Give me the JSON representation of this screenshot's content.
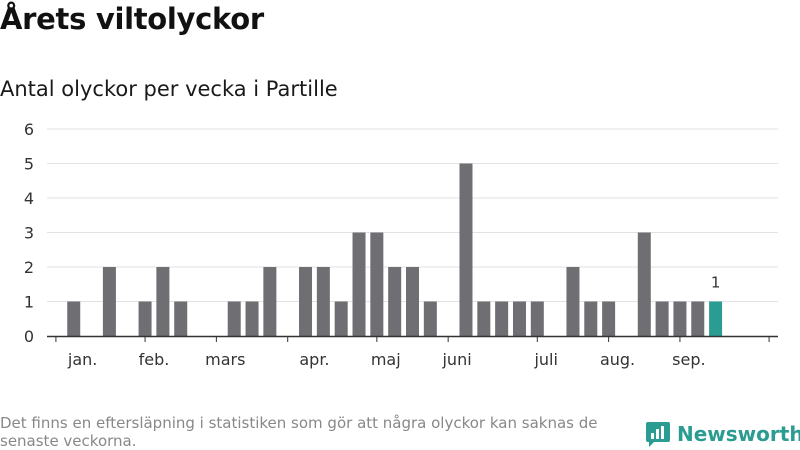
{
  "header": {
    "title": "Årets viltolyckor",
    "subtitle": "Antal olyckor per vecka i Partille"
  },
  "footer": {
    "note": "Det finns en eftersläpning i statistiken som gör att några olyckor kan saknas de senaste veckorna.",
    "brand": "Newsworthy",
    "brand_icon": "newsworthy-logo-icon"
  },
  "colors": {
    "bar": "#6e6e73",
    "highlight": "#2a9c91",
    "grid": "#e2e2e2",
    "axis": "#333333",
    "brand": "#2a9c91"
  },
  "chart_data": {
    "type": "bar",
    "title": "Antal olyckor per vecka i Partille",
    "xlabel": "",
    "ylabel": "",
    "ylim": [
      0,
      6
    ],
    "yticks": [
      0,
      1,
      2,
      3,
      4,
      5,
      6
    ],
    "grid": true,
    "x": [
      1,
      2,
      3,
      4,
      5,
      6,
      7,
      8,
      9,
      10,
      11,
      12,
      13,
      14,
      15,
      16,
      17,
      18,
      19,
      20,
      21,
      22,
      23,
      24,
      25,
      26,
      27,
      28,
      29,
      30,
      31,
      32,
      33,
      34,
      35,
      36,
      37,
      38,
      39,
      40,
      41
    ],
    "values": [
      0,
      1,
      0,
      2,
      0,
      1,
      2,
      1,
      0,
      0,
      1,
      1,
      2,
      0,
      2,
      2,
      1,
      3,
      3,
      2,
      2,
      1,
      0,
      5,
      1,
      1,
      1,
      1,
      0,
      2,
      1,
      1,
      0,
      3,
      1,
      1,
      1,
      1,
      0,
      0,
      0
    ],
    "highlight_index": 37,
    "highlight_label": "1",
    "month_labels": [
      {
        "label": "jan.",
        "week": 2.5
      },
      {
        "label": "feb.",
        "week": 6.5
      },
      {
        "label": "mars",
        "week": 10.5
      },
      {
        "label": "apr.",
        "week": 15.5
      },
      {
        "label": "maj",
        "week": 19.5
      },
      {
        "label": "juni",
        "week": 23.5
      },
      {
        "label": "juli",
        "week": 28.5
      },
      {
        "label": "aug.",
        "week": 32.5
      },
      {
        "label": "sep.",
        "week": 36.5
      }
    ],
    "month_tick_weeks": [
      0.5,
      5.5,
      9.5,
      13.5,
      18.5,
      22.5,
      27.5,
      31.5,
      35.5,
      40.5
    ]
  }
}
